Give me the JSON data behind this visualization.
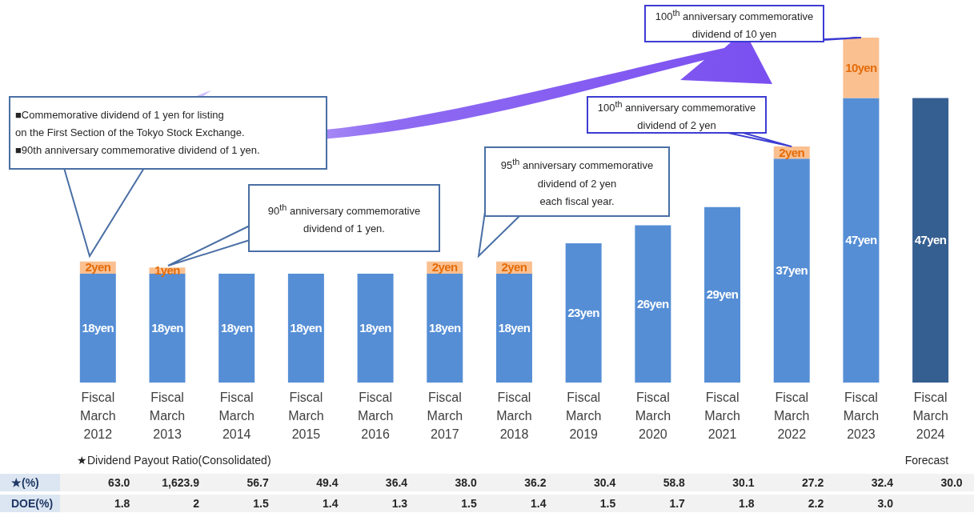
{
  "chart_data": {
    "type": "bar",
    "stacked": true,
    "tick_labels": "x",
    "categories": [
      "Fiscal March 2012",
      "Fiscal March 2013",
      "Fiscal March 2014",
      "Fiscal March 2015",
      "Fiscal March 2016",
      "Fiscal March 2017",
      "Fiscal March 2018",
      "Fiscal March 2019",
      "Fiscal March 2020",
      "Fiscal March 2021",
      "Fiscal March 2022",
      "Fiscal March 2023",
      "Fiscal March 2024"
    ],
    "series": [
      {
        "color": "#558ed5",
        "colors": [
          "#558ed5",
          "#558ed5",
          "#558ed5",
          "#558ed5",
          "#558ed5",
          "#558ed5",
          "#558ed5",
          "#558ed5",
          "#558ed5",
          "#558ed5",
          "#558ed5",
          "#558ed5",
          "#365f91"
        ],
        "values": [
          18,
          18,
          18,
          18,
          18,
          18,
          18,
          23,
          26,
          29,
          37,
          47,
          47
        ],
        "value_labels": [
          "18yen",
          "18yen",
          "18yen",
          "18yen",
          "18yen",
          "18yen",
          "18yen",
          "23yen",
          "26yen",
          "29yen",
          "37yen",
          "47yen",
          "47yen"
        ]
      },
      {
        "color": "#fac090",
        "values": [
          2,
          1,
          null,
          null,
          null,
          2,
          2,
          null,
          null,
          null,
          2,
          10,
          null
        ],
        "value_labels": [
          "2yen",
          "1yen",
          null,
          null,
          null,
          "2yen",
          "2yen",
          null,
          null,
          null,
          "2yen",
          "10yen",
          null
        ]
      }
    ],
    "annotations": [
      "■Commemorative dividend of 1 yen for listing\non the First Section of the Tokyo Stock Exchange.\n■90th anniversary commemorative dividend of 1 yen.",
      "90$^{th}$ anniversary commemorative\ndividend of 1 yen.",
      "95$^{th}$ anniversary commemorative\ndividend of 2 yen\neach fiscal year.",
      {
        "text": "100$^{th}$ anniversary commemorative\ndividend of 2 yen",
        "x": "Fiscal March 2022",
        "y": 39
      },
      {
        "text": "100$^{th}$ anniversary commemorative\ndividend of 10 yen",
        "x": "Fiscal March 2023",
        "y": 57
      },
      "★Dividend Payout Ratio(Consolidated)",
      "Forecast",
      "★(%)",
      "DOE(%)",
      "63.0",
      "1,623.9",
      "56.7",
      "49.4",
      "36.4",
      "38.0",
      "36.2",
      "30.4",
      "58.8",
      "30.1",
      "27.2",
      "32.4",
      "30.0",
      "1.8",
      "2",
      "1.5",
      "1.4",
      "1.3",
      "1.5",
      "1.4",
      "1.5",
      "1.7",
      "1.8",
      "2.2",
      "3.0"
    ]
  }
}
